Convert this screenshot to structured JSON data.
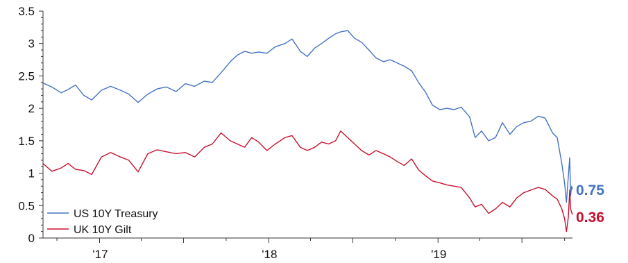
{
  "chart_data": {
    "type": "line",
    "title": "",
    "xlabel": "",
    "ylabel": "",
    "ylim": [
      0,
      3.5
    ],
    "yticks": [
      "0",
      "0.5",
      "1",
      "1.5",
      "2",
      "2.5",
      "3",
      "3.5"
    ],
    "xticks": [
      {
        "label": "'17",
        "x": "2017-01-01"
      },
      {
        "label": "'18",
        "x": "2018-01-01"
      },
      {
        "label": "'19",
        "x": "2019-01-01"
      }
    ],
    "xrange": [
      "2016-09-01",
      "2019-10-18"
    ],
    "grid": false,
    "legend": "bottom-left",
    "series": [
      {
        "name": "US 10Y Treasury",
        "color": "#4472C4",
        "end_value": "0.75",
        "points": [
          [
            "2016-09-01",
            2.39
          ],
          [
            "2016-09-20",
            2.33
          ],
          [
            "2016-10-10",
            2.24
          ],
          [
            "2016-10-25",
            2.29
          ],
          [
            "2016-11-10",
            2.36
          ],
          [
            "2016-11-28",
            2.2
          ],
          [
            "2016-12-15",
            2.13
          ],
          [
            "2017-01-05",
            2.28
          ],
          [
            "2017-01-25",
            2.34
          ],
          [
            "2017-02-15",
            2.28
          ],
          [
            "2017-03-05",
            2.22
          ],
          [
            "2017-03-25",
            2.09
          ],
          [
            "2017-04-15",
            2.22
          ],
          [
            "2017-05-05",
            2.3
          ],
          [
            "2017-05-25",
            2.33
          ],
          [
            "2017-06-15",
            2.26
          ],
          [
            "2017-07-05",
            2.38
          ],
          [
            "2017-07-25",
            2.34
          ],
          [
            "2017-08-15",
            2.42
          ],
          [
            "2017-09-01",
            2.4
          ],
          [
            "2017-09-20",
            2.55
          ],
          [
            "2017-10-10",
            2.72
          ],
          [
            "2017-10-25",
            2.82
          ],
          [
            "2017-11-10",
            2.88
          ],
          [
            "2017-11-25",
            2.85
          ],
          [
            "2017-12-10",
            2.87
          ],
          [
            "2017-12-28",
            2.85
          ],
          [
            "2018-01-15",
            2.95
          ],
          [
            "2018-02-05",
            3.0
          ],
          [
            "2018-02-20",
            3.07
          ],
          [
            "2018-03-10",
            2.88
          ],
          [
            "2018-03-25",
            2.8
          ],
          [
            "2018-04-10",
            2.93
          ],
          [
            "2018-04-25",
            3.0
          ],
          [
            "2018-05-10",
            3.08
          ],
          [
            "2018-05-25",
            3.15
          ],
          [
            "2018-06-05",
            3.18
          ],
          [
            "2018-06-20",
            3.2
          ],
          [
            "2018-07-05",
            3.08
          ],
          [
            "2018-07-20",
            3.02
          ],
          [
            "2018-08-05",
            2.9
          ],
          [
            "2018-08-20",
            2.78
          ],
          [
            "2018-09-05",
            2.72
          ],
          [
            "2018-09-20",
            2.75
          ],
          [
            "2018-10-05",
            2.7
          ],
          [
            "2018-10-20",
            2.65
          ],
          [
            "2018-11-05",
            2.58
          ],
          [
            "2018-11-20",
            2.4
          ],
          [
            "2018-12-05",
            2.25
          ],
          [
            "2018-12-20",
            2.05
          ],
          [
            "2019-01-05",
            1.98
          ],
          [
            "2019-01-20",
            2.0
          ],
          [
            "2019-02-05",
            1.98
          ],
          [
            "2019-02-20",
            2.02
          ],
          [
            "2019-03-10",
            1.87
          ],
          [
            "2019-03-22",
            1.55
          ],
          [
            "2019-04-05",
            1.65
          ],
          [
            "2019-04-20",
            1.5
          ],
          [
            "2019-05-05",
            1.55
          ],
          [
            "2019-05-20",
            1.78
          ],
          [
            "2019-06-05",
            1.6
          ],
          [
            "2019-06-20",
            1.72
          ],
          [
            "2019-07-05",
            1.78
          ],
          [
            "2019-07-20",
            1.8
          ],
          [
            "2019-08-05",
            1.88
          ],
          [
            "2019-08-20",
            1.85
          ],
          [
            "2019-09-05",
            1.62
          ],
          [
            "2019-09-15",
            1.55
          ],
          [
            "2019-09-25",
            1.15
          ],
          [
            "2019-10-01",
            0.85
          ],
          [
            "2019-10-05",
            0.55
          ],
          [
            "2019-10-09",
            0.95
          ],
          [
            "2019-10-12",
            1.24
          ],
          [
            "2019-10-14",
            0.65
          ],
          [
            "2019-10-16",
            0.8
          ],
          [
            "2019-10-18",
            0.75
          ]
        ]
      },
      {
        "name": "UK 10Y Gilt",
        "color": "#C8102E",
        "end_value": "0.36",
        "points": [
          [
            "2016-09-01",
            1.15
          ],
          [
            "2016-09-20",
            1.03
          ],
          [
            "2016-10-10",
            1.08
          ],
          [
            "2016-10-25",
            1.15
          ],
          [
            "2016-11-10",
            1.06
          ],
          [
            "2016-11-28",
            1.04
          ],
          [
            "2016-12-15",
            0.98
          ],
          [
            "2017-01-05",
            1.25
          ],
          [
            "2017-01-25",
            1.32
          ],
          [
            "2017-02-15",
            1.25
          ],
          [
            "2017-03-05",
            1.2
          ],
          [
            "2017-03-25",
            1.02
          ],
          [
            "2017-04-15",
            1.3
          ],
          [
            "2017-05-05",
            1.36
          ],
          [
            "2017-05-25",
            1.33
          ],
          [
            "2017-06-15",
            1.3
          ],
          [
            "2017-07-05",
            1.32
          ],
          [
            "2017-07-25",
            1.25
          ],
          [
            "2017-08-15",
            1.4
          ],
          [
            "2017-09-01",
            1.45
          ],
          [
            "2017-09-20",
            1.62
          ],
          [
            "2017-10-10",
            1.5
          ],
          [
            "2017-10-25",
            1.45
          ],
          [
            "2017-11-10",
            1.4
          ],
          [
            "2017-11-25",
            1.55
          ],
          [
            "2017-12-10",
            1.48
          ],
          [
            "2017-12-28",
            1.35
          ],
          [
            "2018-01-15",
            1.45
          ],
          [
            "2018-02-05",
            1.55
          ],
          [
            "2018-02-20",
            1.58
          ],
          [
            "2018-03-10",
            1.4
          ],
          [
            "2018-03-25",
            1.35
          ],
          [
            "2018-04-10",
            1.4
          ],
          [
            "2018-04-25",
            1.48
          ],
          [
            "2018-05-10",
            1.45
          ],
          [
            "2018-05-25",
            1.5
          ],
          [
            "2018-06-05",
            1.65
          ],
          [
            "2018-06-20",
            1.55
          ],
          [
            "2018-07-05",
            1.45
          ],
          [
            "2018-07-20",
            1.35
          ],
          [
            "2018-08-05",
            1.28
          ],
          [
            "2018-08-20",
            1.35
          ],
          [
            "2018-09-05",
            1.3
          ],
          [
            "2018-09-20",
            1.25
          ],
          [
            "2018-10-05",
            1.18
          ],
          [
            "2018-10-20",
            1.12
          ],
          [
            "2018-11-05",
            1.22
          ],
          [
            "2018-11-20",
            1.05
          ],
          [
            "2018-12-05",
            0.96
          ],
          [
            "2018-12-20",
            0.88
          ],
          [
            "2019-01-05",
            0.85
          ],
          [
            "2019-01-20",
            0.82
          ],
          [
            "2019-02-05",
            0.8
          ],
          [
            "2019-02-20",
            0.78
          ],
          [
            "2019-03-10",
            0.62
          ],
          [
            "2019-03-22",
            0.48
          ],
          [
            "2019-04-05",
            0.52
          ],
          [
            "2019-04-20",
            0.38
          ],
          [
            "2019-05-05",
            0.45
          ],
          [
            "2019-05-20",
            0.55
          ],
          [
            "2019-06-05",
            0.48
          ],
          [
            "2019-06-20",
            0.62
          ],
          [
            "2019-07-05",
            0.7
          ],
          [
            "2019-07-20",
            0.74
          ],
          [
            "2019-08-05",
            0.78
          ],
          [
            "2019-08-20",
            0.75
          ],
          [
            "2019-09-05",
            0.65
          ],
          [
            "2019-09-15",
            0.6
          ],
          [
            "2019-09-25",
            0.45
          ],
          [
            "2019-10-01",
            0.3
          ],
          [
            "2019-10-05",
            0.1
          ],
          [
            "2019-10-09",
            0.32
          ],
          [
            "2019-10-12",
            0.74
          ],
          [
            "2019-10-14",
            0.45
          ],
          [
            "2019-10-16",
            0.4
          ],
          [
            "2019-10-18",
            0.36
          ]
        ]
      }
    ]
  }
}
